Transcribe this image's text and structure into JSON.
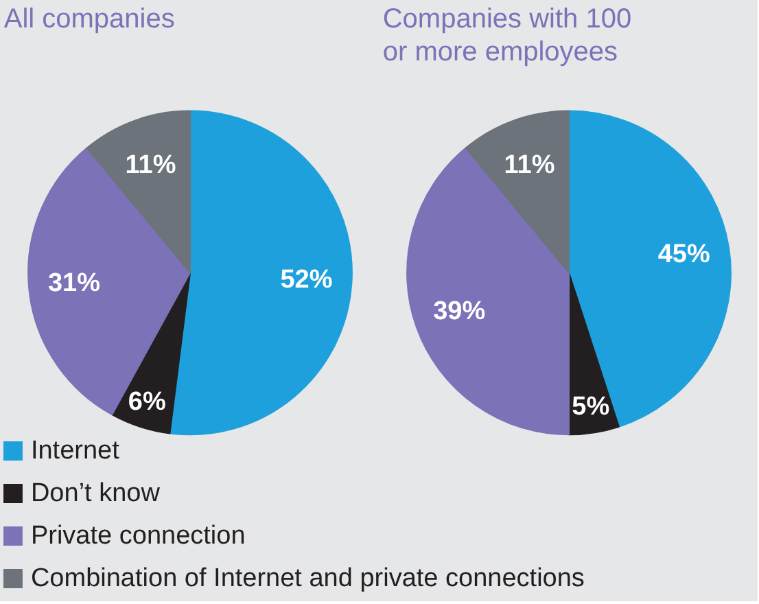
{
  "chart_data": [
    {
      "type": "pie",
      "title": "All companies",
      "categories": [
        "Internet",
        "Don’t know",
        "Private connection",
        "Combination of Internet and private connections"
      ],
      "values": [
        52,
        6,
        31,
        11
      ],
      "colors": [
        "#1ea0dc",
        "#231f20",
        "#7b72b8",
        "#6c737a"
      ],
      "value_labels": [
        "52%",
        "6%",
        "31%",
        "11%"
      ],
      "legend": "bottom"
    },
    {
      "type": "pie",
      "title": "Companies with 100 or more employees",
      "values": [
        45,
        5,
        39,
        11
      ],
      "colors": [
        "#1ea0dc",
        "#231f20",
        "#7b72b8",
        "#6c737a"
      ],
      "value_labels": [
        "45%",
        "5%",
        "39%",
        "11%"
      ]
    }
  ]
}
